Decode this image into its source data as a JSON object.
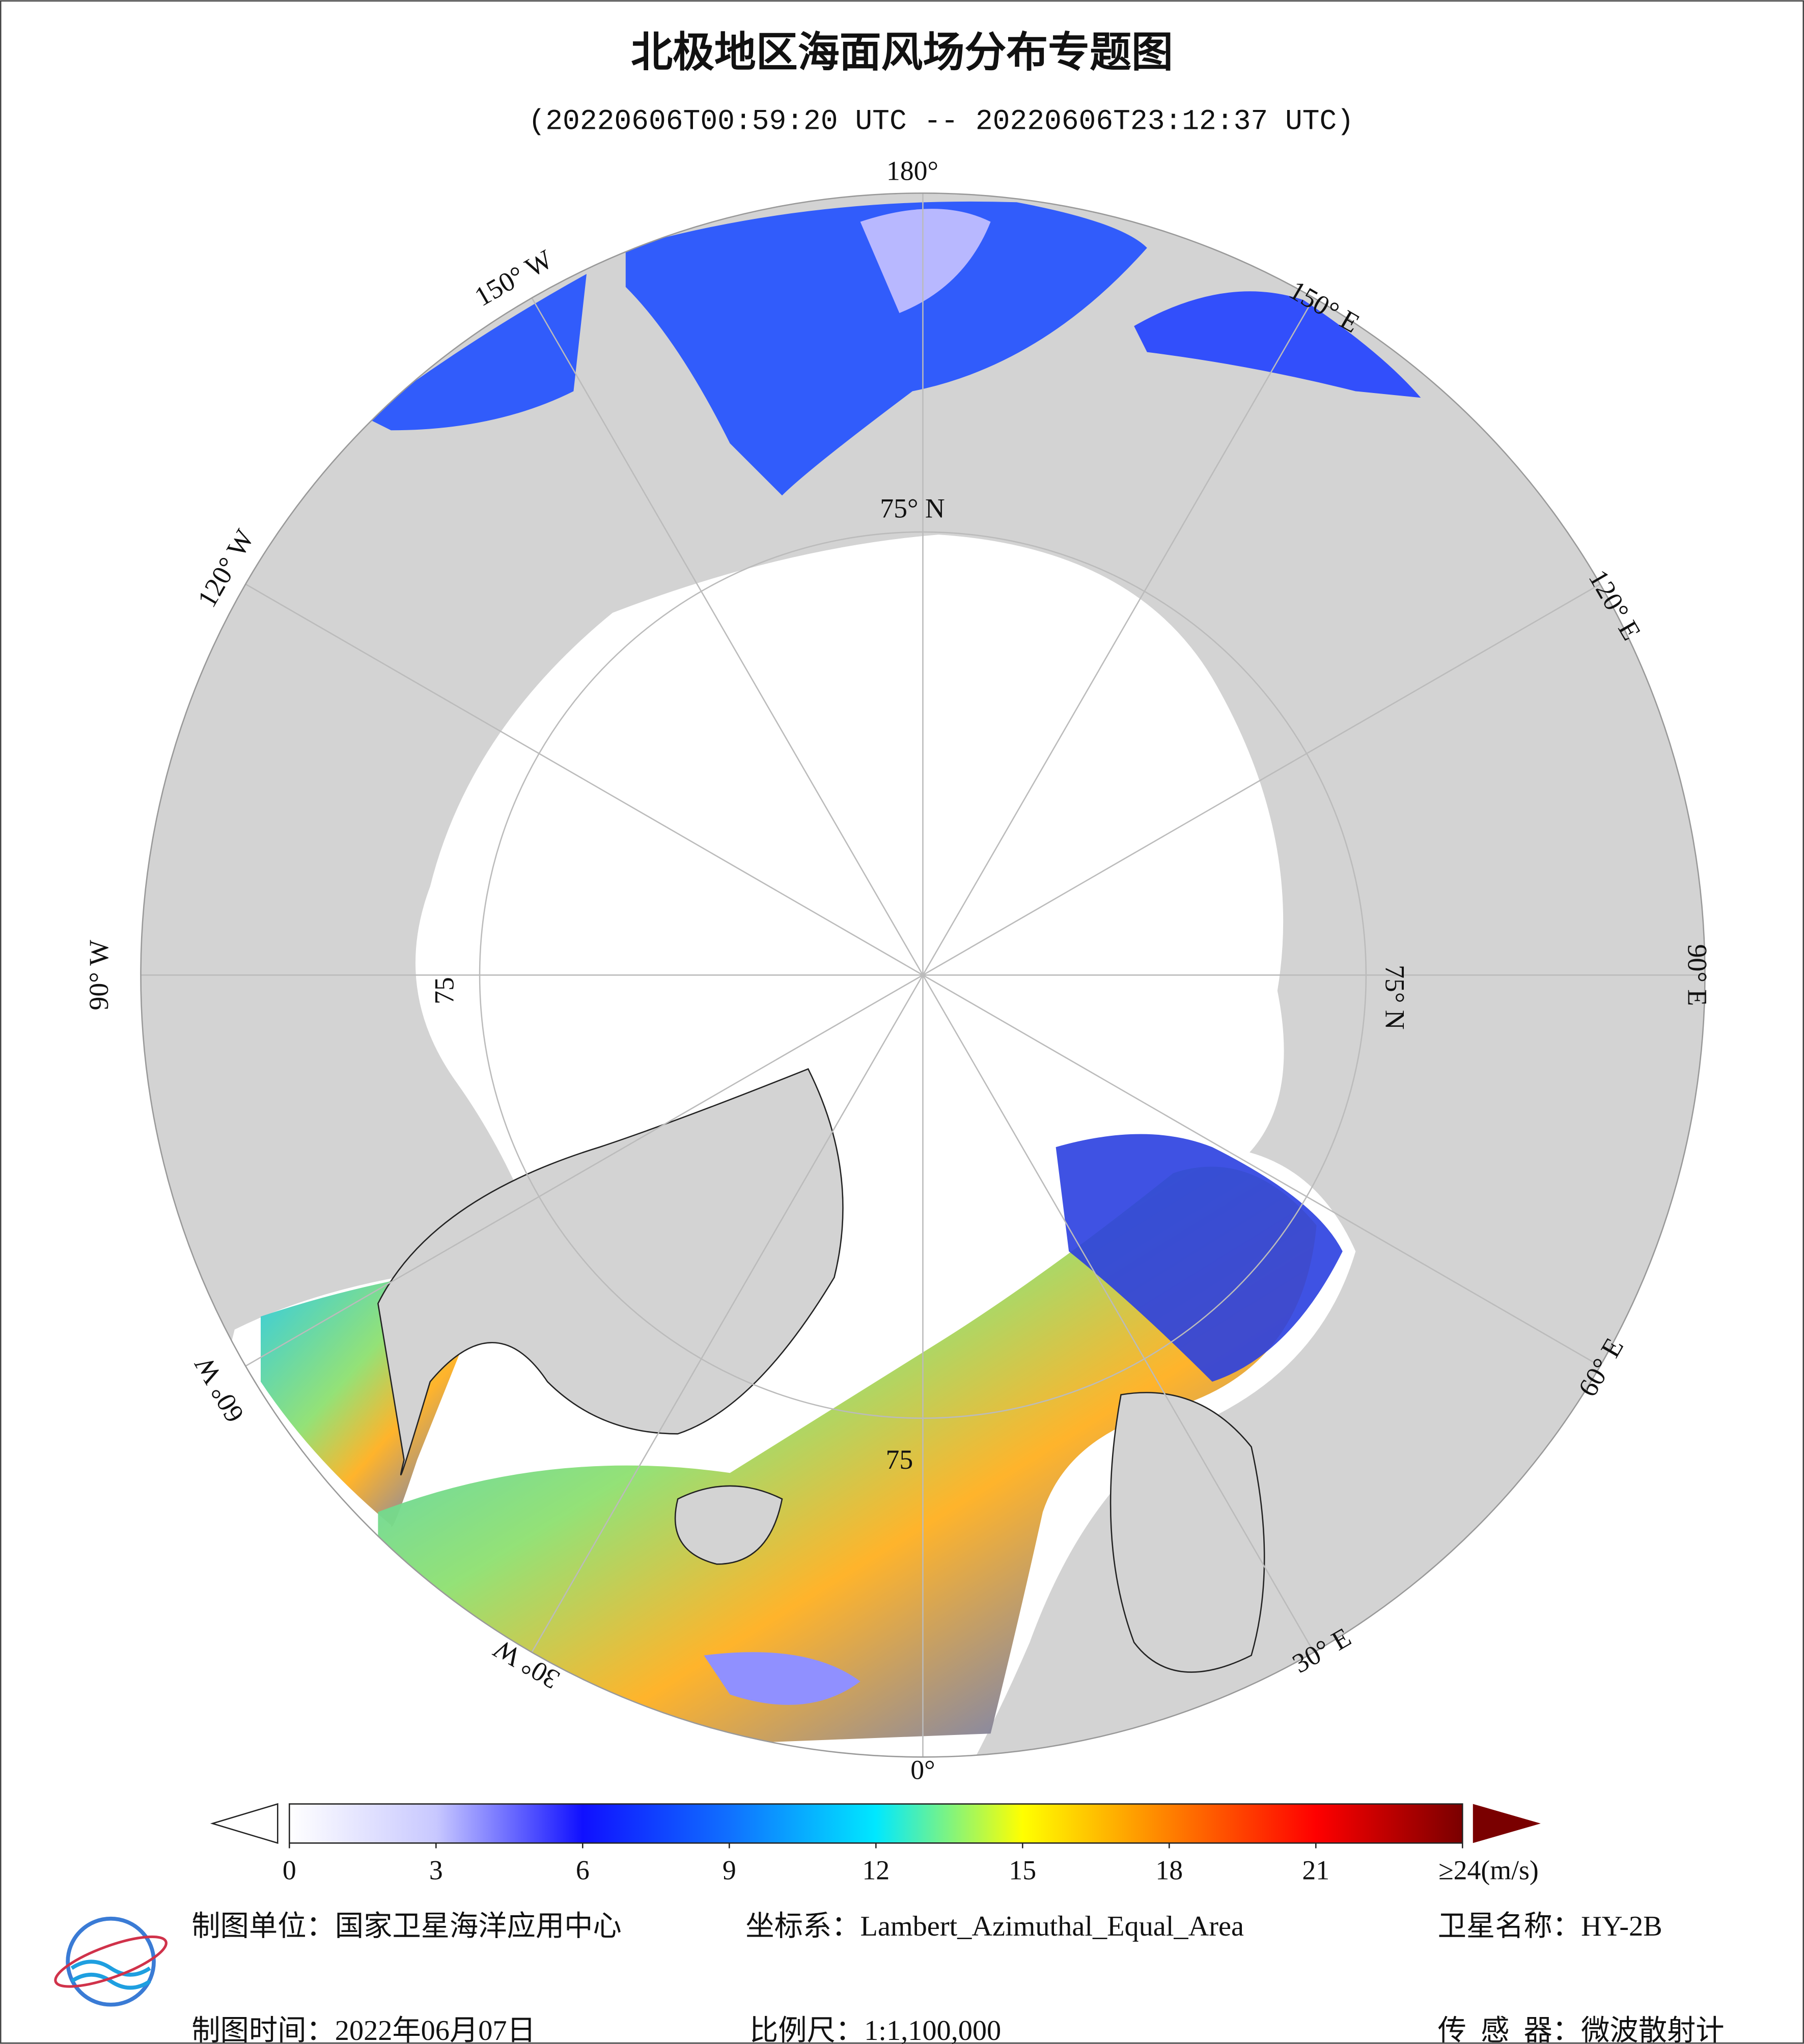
{
  "title": "北极地区海面风场分布专题图",
  "subtitle": "(20220606T00:59:20 UTC -- 20220606T23:12:37 UTC)",
  "map": {
    "meridian_labels": [
      "180°",
      "150° E",
      "120° E",
      "90° E",
      "60° E",
      "30° E",
      "0°",
      "30° W",
      "60° W",
      "90° W",
      "120° W",
      "150° W"
    ],
    "parallel_labels": [
      "75° N",
      "75° N",
      "75",
      "75"
    ]
  },
  "colorbar": {
    "lim": [
      0,
      24
    ],
    "ticks": [
      0,
      3,
      6,
      9,
      12,
      15,
      18,
      21,
      {
        "value": 24,
        "label": "≥24(m/s)"
      }
    ],
    "colors": [
      "#ffffff",
      "#c8c8ff",
      "#1010ff",
      "#1070ff",
      "#00e8ff",
      "#ffff00",
      "#ff8000",
      "#ff0000",
      "#7a0000"
    ]
  },
  "footer": {
    "unit": "制图单位：国家卫星海洋应用中心",
    "coord": "坐标系：Lambert_Azimuthal_Equal_Area",
    "satellite": "卫星名称：HY-2B",
    "date": "制图时间：2022年06月07日",
    "scale": "比例尺：1:1,100,000",
    "sensor": "传  感  器：微波散射计"
  }
}
